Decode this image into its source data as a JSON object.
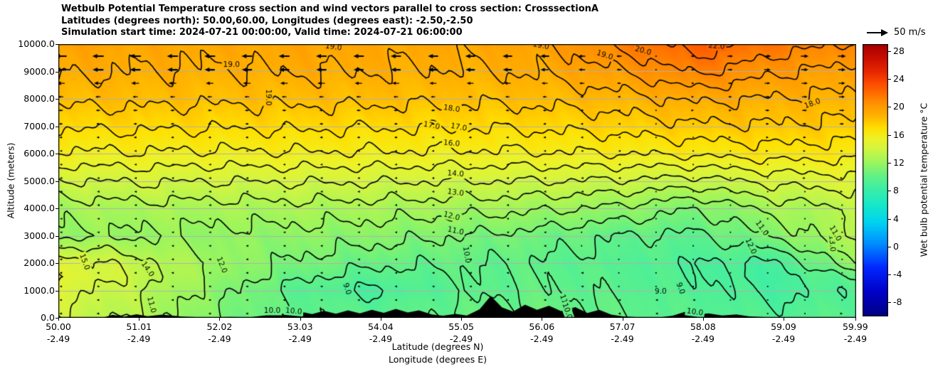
{
  "title": {
    "line1": "Wetbulb Potential Temperature cross section and wind vectors parallel to cross section: CrosssectionA",
    "line2": "Latitudes (degrees north): 50.00,60.00, Longitudes (degrees east): -2.50,-2.50",
    "line3": "Simulation start time: 2024-07-21 00:00:00, Valid time: 2024-07-21 06:00:00"
  },
  "wind_legend": {
    "label": "50 m/s",
    "reference_speed_ms": 50
  },
  "chart_data": {
    "type": "heatmap",
    "subtype": "filled-contour cross-section with wind vectors",
    "ylabel": "Altitude (meters)",
    "xlabel_lat": "Latitude (degrees N)",
    "xlabel_lon": "Longitude (degrees E)",
    "x_ticks": [
      {
        "lat": "50.00",
        "lon": "-2.49",
        "value": 50.0
      },
      {
        "lat": "51.01",
        "lon": "-2.49",
        "value": 51.01
      },
      {
        "lat": "52.02",
        "lon": "-2.49",
        "value": 52.02
      },
      {
        "lat": "53.03",
        "lon": "-2.49",
        "value": 53.03
      },
      {
        "lat": "54.04",
        "lon": "-2.49",
        "value": 54.04
      },
      {
        "lat": "55.05",
        "lon": "-2.49",
        "value": 55.05
      },
      {
        "lat": "56.06",
        "lon": "-2.49",
        "value": 56.06
      },
      {
        "lat": "57.07",
        "lon": "-2.49",
        "value": 57.07
      },
      {
        "lat": "58.08",
        "lon": "-2.49",
        "value": 58.08
      },
      {
        "lat": "59.09",
        "lon": "-2.49",
        "value": 59.09
      },
      {
        "lat": "59.99",
        "lon": "-2.49",
        "value": 59.99
      }
    ],
    "y_ticks": [
      {
        "label": "10000.0",
        "value": 10000
      },
      {
        "label": "9000.0",
        "value": 9000
      },
      {
        "label": "8000.0",
        "value": 8000
      },
      {
        "label": "7000.0",
        "value": 7000
      },
      {
        "label": "6000.0",
        "value": 6000
      },
      {
        "label": "5000.0",
        "value": 5000
      },
      {
        "label": "4000.0",
        "value": 4000
      },
      {
        "label": "3000.0",
        "value": 3000
      },
      {
        "label": "2000.0",
        "value": 2000
      },
      {
        "label": "1000.0",
        "value": 1000
      },
      {
        "label": "0.0",
        "value": 0
      }
    ],
    "ylim": [
      0,
      10000
    ],
    "xlim": [
      50,
      60
    ],
    "grid": true,
    "colorbar": {
      "label": "Wet bulb potential temperature °C",
      "vmin": -10,
      "vmax": 29,
      "tick_values": [
        28,
        24,
        20,
        16,
        12,
        8,
        4,
        0,
        -4,
        -8
      ],
      "tick_labels": [
        "28",
        "24",
        "20",
        "16",
        "12",
        "8",
        "4",
        "0",
        "-4",
        "-8"
      ],
      "colormap": [
        [
          -10,
          "#000084"
        ],
        [
          -6.5,
          "#0000c8"
        ],
        [
          -3,
          "#0028ff"
        ],
        [
          0.5,
          "#0090ff"
        ],
        [
          3.5,
          "#00d4f0"
        ],
        [
          6,
          "#18e8c8"
        ],
        [
          8,
          "#38edaa"
        ],
        [
          10,
          "#60f088"
        ],
        [
          12,
          "#9af55e"
        ],
        [
          14,
          "#d2f542"
        ],
        [
          15.5,
          "#eef227"
        ],
        [
          17,
          "#ffdf00"
        ],
        [
          18,
          "#ffc400"
        ],
        [
          19,
          "#ffae00"
        ],
        [
          20,
          "#ff9c00"
        ],
        [
          21,
          "#ff8700"
        ],
        [
          22,
          "#ff6c00"
        ],
        [
          23.5,
          "#fb4a00"
        ],
        [
          25,
          "#e82800"
        ],
        [
          27,
          "#c90e00"
        ],
        [
          29,
          "#a50000"
        ]
      ]
    },
    "contour_levels": [
      9,
      10,
      11,
      12,
      13,
      14,
      15,
      16,
      17,
      18,
      19,
      20,
      21,
      22
    ],
    "contour_labels": [
      [
        "19.0",
        53.45,
        9900,
        8
      ],
      [
        "19.0",
        56.05,
        9950,
        10
      ],
      [
        "19.0",
        56.85,
        9600,
        18
      ],
      [
        "20.0",
        57.33,
        9760,
        15
      ],
      [
        "22.0",
        58.25,
        9930,
        5
      ],
      [
        "19.0",
        52.17,
        9250,
        0
      ],
      [
        "19.0",
        52.63,
        8050,
        90
      ],
      [
        "18.0",
        54.93,
        7650,
        8
      ],
      [
        "18.0",
        59.45,
        7830,
        -20
      ],
      [
        "17.0",
        54.68,
        7030,
        10
      ],
      [
        "17.0",
        55.02,
        6970,
        10
      ],
      [
        "16.0",
        54.93,
        6380,
        5
      ],
      [
        "14.0",
        54.98,
        5270,
        4
      ],
      [
        "13.0",
        54.98,
        4580,
        8
      ],
      [
        "12.0",
        54.93,
        3720,
        14
      ],
      [
        "11.0",
        54.98,
        3180,
        12
      ],
      [
        "10.0",
        55.12,
        2300,
        82
      ],
      [
        "15.0",
        50.33,
        2050,
        70
      ],
      [
        "14.0",
        51.12,
        1780,
        55
      ],
      [
        "12.0",
        52.05,
        1930,
        68
      ],
      [
        "11.0",
        51.17,
        480,
        75
      ],
      [
        "10.0",
        52.68,
        260,
        0
      ],
      [
        "10.0",
        52.95,
        245,
        5
      ],
      [
        "9.0",
        53.62,
        1060,
        72
      ],
      [
        "11.0",
        56.35,
        560,
        70
      ],
      [
        "10.0",
        56.38,
        250,
        70
      ],
      [
        "9.0",
        57.55,
        960,
        0
      ],
      [
        "9.0",
        57.8,
        1080,
        70
      ],
      [
        "10.0",
        57.98,
        215,
        8
      ],
      [
        "12.0",
        58.68,
        2620,
        65
      ],
      [
        "11.0",
        58.82,
        3280,
        55
      ],
      [
        "13.0",
        59.7,
        2720,
        85
      ],
      [
        "11.0",
        59.74,
        3090,
        60
      ]
    ],
    "field": {
      "lats": [
        50,
        51,
        52,
        53,
        54,
        55,
        56,
        57,
        58,
        59,
        60
      ],
      "alts": [
        0,
        500,
        1000,
        1500,
        2000,
        3000,
        4000,
        5000,
        6000,
        7000,
        8000,
        9000,
        10000
      ],
      "values": [
        [
          13.8,
          12.8,
          11.0,
          10.0,
          9.6,
          10.2,
          10.4,
          10.0,
          9.6,
          9.4,
          9.8
        ],
        [
          14.2,
          13.0,
          11.2,
          9.9,
          9.4,
          10.0,
          10.3,
          9.9,
          9.5,
          9.0,
          9.6
        ],
        [
          14.6,
          13.2,
          11.4,
          9.6,
          8.8,
          9.7,
          10.1,
          9.7,
          9.3,
          8.7,
          9.4
        ],
        [
          15.1,
          13.6,
          11.8,
          10.2,
          9.5,
          9.9,
          10.0,
          9.6,
          9.1,
          8.6,
          10.2
        ],
        [
          14.8,
          13.4,
          12.0,
          10.8,
          10.2,
          10.1,
          9.9,
          9.5,
          9.0,
          8.8,
          12.0
        ],
        [
          11.8,
          11.9,
          11.7,
          11.6,
          11.4,
          11.0,
          10.6,
          10.0,
          9.8,
          11.2,
          13.2
        ],
        [
          12.4,
          12.6,
          12.5,
          12.6,
          12.5,
          12.4,
          12.2,
          11.8,
          11.0,
          12.4,
          13.1
        ],
        [
          13.9,
          14.1,
          14.0,
          14.1,
          14.1,
          14.0,
          14.0,
          13.9,
          13.6,
          14.3,
          14.6
        ],
        [
          15.8,
          15.9,
          15.8,
          15.9,
          15.9,
          15.8,
          15.9,
          16.0,
          16.2,
          16.5,
          16.4
        ],
        [
          17.2,
          17.2,
          17.1,
          17.2,
          17.1,
          17.1,
          17.2,
          17.4,
          17.8,
          17.9,
          17.7
        ],
        [
          18.3,
          18.3,
          18.2,
          18.3,
          18.3,
          18.2,
          18.3,
          18.6,
          19.2,
          18.9,
          18.7
        ],
        [
          19.2,
          19.0,
          18.9,
          19.1,
          19.0,
          18.9,
          19.1,
          19.9,
          21.2,
          20.1,
          19.6
        ],
        [
          19.6,
          19.4,
          19.3,
          19.5,
          19.4,
          19.3,
          19.6,
          21.2,
          22.6,
          21.6,
          20.8
        ]
      ]
    },
    "wind": {
      "units": "m/s",
      "reference_speed_ms": 50,
      "rows": 20,
      "cols": 22,
      "lats": [
        50,
        51,
        52,
        53,
        54,
        55,
        56,
        57,
        58,
        59,
        60
      ],
      "alts": [
        0,
        2000,
        4000,
        6000,
        8000,
        9000,
        10000
      ],
      "u": [
        [
          -6,
          -6,
          -5,
          -5,
          -5,
          -4,
          -4,
          -3,
          -3,
          -2,
          4
        ],
        [
          -4,
          -4,
          -4,
          -4,
          -4,
          -3,
          -3,
          -2,
          -2,
          -1,
          2
        ],
        [
          -3,
          -3,
          -3,
          -3,
          -4,
          -4,
          -3,
          -2,
          -1,
          1,
          2
        ],
        [
          -4,
          -4,
          -4,
          -5,
          -5,
          -5,
          -4,
          -3,
          0,
          3,
          5
        ],
        [
          -11,
          -11,
          -10,
          -10,
          -10,
          -9,
          -9,
          -6,
          4,
          12,
          14
        ],
        [
          -26,
          -25,
          -24,
          -24,
          -23,
          -22,
          -20,
          -12,
          8,
          16,
          18
        ],
        [
          -29,
          -28,
          -27,
          -27,
          -26,
          -25,
          -23,
          -14,
          10,
          19,
          21
        ]
      ]
    },
    "terrain_profile_lat_m": [
      [
        50.0,
        0
      ],
      [
        50.55,
        0
      ],
      [
        50.68,
        110
      ],
      [
        50.82,
        40
      ],
      [
        50.98,
        130
      ],
      [
        51.12,
        60
      ],
      [
        51.3,
        115
      ],
      [
        51.55,
        45
      ],
      [
        51.85,
        12
      ],
      [
        52.15,
        35
      ],
      [
        52.4,
        18
      ],
      [
        52.58,
        85
      ],
      [
        52.72,
        195
      ],
      [
        52.88,
        115
      ],
      [
        53.03,
        225
      ],
      [
        53.18,
        135
      ],
      [
        53.33,
        255
      ],
      [
        53.48,
        150
      ],
      [
        53.63,
        275
      ],
      [
        53.78,
        165
      ],
      [
        53.93,
        295
      ],
      [
        54.08,
        185
      ],
      [
        54.23,
        325
      ],
      [
        54.38,
        195
      ],
      [
        54.52,
        270
      ],
      [
        54.68,
        125
      ],
      [
        54.82,
        75
      ],
      [
        54.98,
        145
      ],
      [
        55.12,
        85
      ],
      [
        55.28,
        310
      ],
      [
        55.42,
        800
      ],
      [
        55.56,
        380
      ],
      [
        55.7,
        230
      ],
      [
        55.85,
        480
      ],
      [
        56.0,
        295
      ],
      [
        56.15,
        440
      ],
      [
        56.3,
        245
      ],
      [
        56.48,
        390
      ],
      [
        56.63,
        175
      ],
      [
        56.78,
        290
      ],
      [
        56.93,
        115
      ],
      [
        57.08,
        55
      ],
      [
        57.28,
        18
      ],
      [
        57.5,
        0
      ],
      [
        57.7,
        75
      ],
      [
        57.85,
        215
      ],
      [
        58.0,
        115
      ],
      [
        58.15,
        165
      ],
      [
        58.32,
        85
      ],
      [
        58.5,
        125
      ],
      [
        58.66,
        55
      ],
      [
        58.85,
        25
      ],
      [
        59.05,
        0
      ],
      [
        59.99,
        0
      ]
    ]
  }
}
